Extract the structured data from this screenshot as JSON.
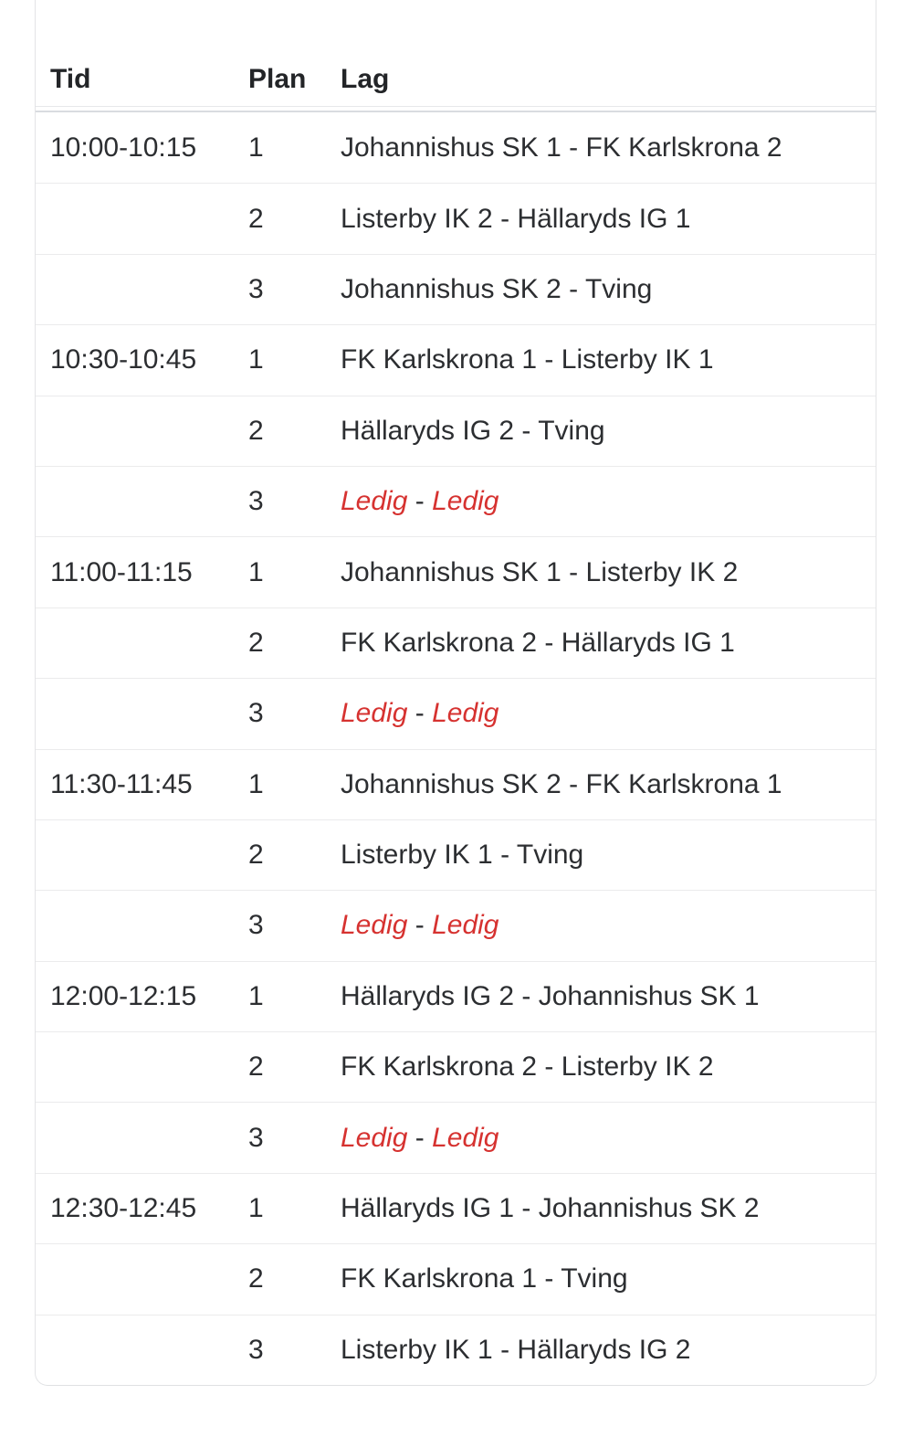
{
  "table": {
    "columns": [
      {
        "key": "tid",
        "label": "Tid"
      },
      {
        "key": "plan",
        "label": "Plan"
      },
      {
        "key": "lag",
        "label": "Lag"
      }
    ],
    "separator": " - ",
    "rows": [
      {
        "tid": "10:00-10:15",
        "plan": "1",
        "home": "Johannishus SK 1",
        "away": "FK Karlskrona 2",
        "free": false
      },
      {
        "tid": "",
        "plan": "2",
        "home": "Listerby IK 2",
        "away": "Hällaryds IG 1",
        "free": false
      },
      {
        "tid": "",
        "plan": "3",
        "home": "Johannishus SK 2",
        "away": "Tving",
        "free": false
      },
      {
        "tid": "10:30-10:45",
        "plan": "1",
        "home": "FK Karlskrona 1",
        "away": "Listerby IK 1",
        "free": false
      },
      {
        "tid": "",
        "plan": "2",
        "home": "Hällaryds IG 2",
        "away": "Tving",
        "free": false
      },
      {
        "tid": "",
        "plan": "3",
        "home": "Ledig",
        "away": "Ledig",
        "free": true
      },
      {
        "tid": "11:00-11:15",
        "plan": "1",
        "home": "Johannishus SK 1",
        "away": "Listerby IK 2",
        "free": false
      },
      {
        "tid": "",
        "plan": "2",
        "home": "FK Karlskrona 2",
        "away": "Hällaryds IG 1",
        "free": false
      },
      {
        "tid": "",
        "plan": "3",
        "home": "Ledig",
        "away": "Ledig",
        "free": true
      },
      {
        "tid": "11:30-11:45",
        "plan": "1",
        "home": "Johannishus SK 2",
        "away": "FK Karlskrona 1",
        "free": false
      },
      {
        "tid": "",
        "plan": "2",
        "home": "Listerby IK 1",
        "away": "Tving",
        "free": false
      },
      {
        "tid": "",
        "plan": "3",
        "home": "Ledig",
        "away": "Ledig",
        "free": true
      },
      {
        "tid": "12:00-12:15",
        "plan": "1",
        "home": "Hällaryds IG 2",
        "away": "Johannishus SK 1",
        "free": false
      },
      {
        "tid": "",
        "plan": "2",
        "home": "FK Karlskrona 2",
        "away": "Listerby IK 2",
        "free": false
      },
      {
        "tid": "",
        "plan": "3",
        "home": "Ledig",
        "away": "Ledig",
        "free": true
      },
      {
        "tid": "12:30-12:45",
        "plan": "1",
        "home": "Hällaryds IG 1",
        "away": "Johannishus SK 2",
        "free": false
      },
      {
        "tid": "",
        "plan": "2",
        "home": "FK Karlskrona 1",
        "away": "Tving",
        "free": false
      },
      {
        "tid": "",
        "plan": "3",
        "home": "Listerby IK 1",
        "away": "Hällaryds IG 2",
        "free": false
      }
    ]
  },
  "colors": {
    "text": "#2c2e31",
    "header_text": "#232528",
    "free_text": "#d63230",
    "row_border": "#ebebec",
    "card_border": "#e3e4e6",
    "header_thick_border": "#d9dce0"
  }
}
